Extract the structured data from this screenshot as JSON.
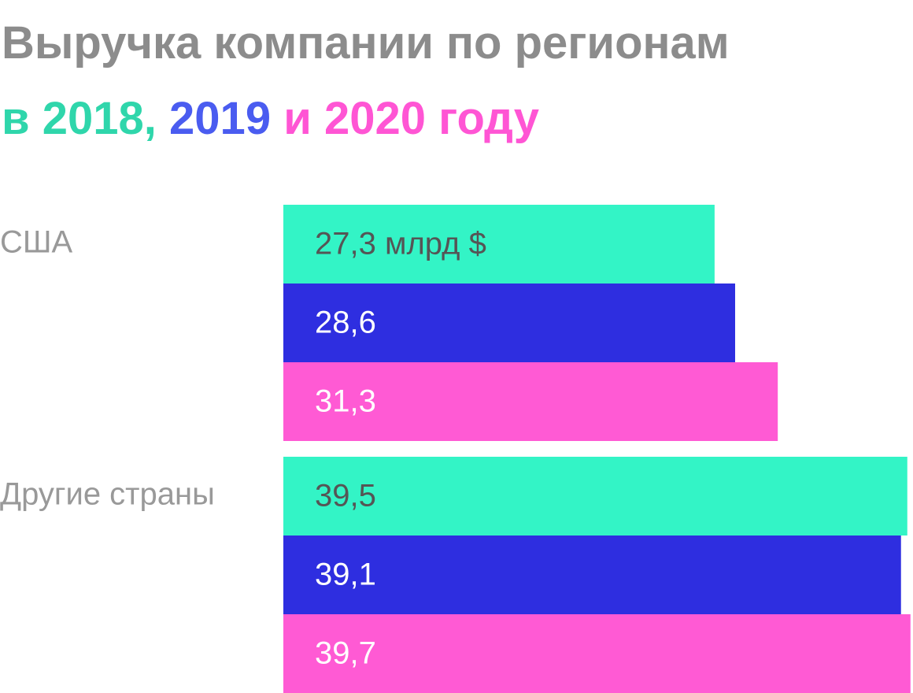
{
  "chart_data": {
    "type": "hbar",
    "title": "Выручка компании по регионам",
    "subtitle_parts": [
      {
        "text": "в 2018,",
        "color": "#2fd6ab"
      },
      {
        "text": "2019",
        "color": "#4a5cf0"
      },
      {
        "text": "и 2020 году",
        "color": "#ff55d4"
      }
    ],
    "categories": [
      "США",
      "Другие страны"
    ],
    "series": [
      {
        "color": "#33f4c6",
        "label_color": "#555555",
        "values": [
          27.3,
          39.5
        ],
        "value_labels": [
          "27,3 млрд $",
          "39,5"
        ]
      },
      {
        "color": "#2e2ee0",
        "label_color": "#ffffff",
        "values": [
          28.6,
          39.1
        ],
        "value_labels": [
          "28,6",
          "39,1"
        ]
      },
      {
        "color": "#ff5ad4",
        "label_color": "#ffffff",
        "values": [
          31.3,
          39.7
        ],
        "value_labels": [
          "31,3",
          "39,7"
        ]
      }
    ]
  }
}
